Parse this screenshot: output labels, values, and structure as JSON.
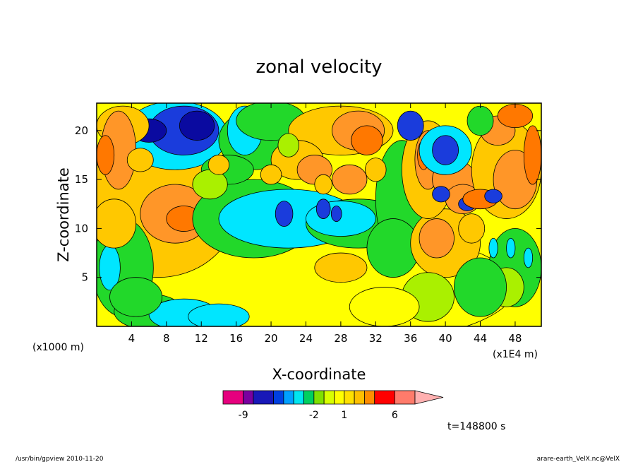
{
  "chart_data": {
    "type": "heatmap",
    "title": "zonal velocity",
    "xlabel": "X-coordinate",
    "ylabel": "Z-coordinate",
    "x_unit_note": "(x1E4 m)",
    "y_unit_note": "(x1000 m)",
    "xlim": [
      0,
      51
    ],
    "ylim": [
      0,
      22.8
    ],
    "x_ticks": [
      4,
      8,
      12,
      16,
      20,
      24,
      28,
      32,
      36,
      40,
      44,
      48
    ],
    "y_ticks": [
      5,
      10,
      15,
      20
    ],
    "colorbar": {
      "tick_labels": [
        "-9",
        "-2",
        "1",
        "6"
      ],
      "tick_values": [
        -9,
        -2,
        1,
        6
      ],
      "colors": [
        "#e6007e",
        "#7a00a0",
        "#1818b8",
        "#0040e0",
        "#00a0ff",
        "#00e6f0",
        "#00d060",
        "#80e000",
        "#d8ff00",
        "#ffff00",
        "#ffe000",
        "#ffc000",
        "#ff8c00",
        "#ff0000",
        "#ff7b6b",
        "#ffb0b0"
      ],
      "boundaries": [
        -11,
        -9,
        -8,
        -6,
        -5,
        -4,
        -3,
        -2,
        -1,
        0,
        1,
        2,
        3,
        4,
        6,
        8,
        15
      ]
    },
    "annotation": "t=148800 s",
    "grid": false,
    "colormap_band_colors": {
      "cyan": "#00e6ff",
      "lightblue": "#00c8f0",
      "blue": "#1a3cdc",
      "darkblue": "#0a0aa0",
      "green": "#22d82a",
      "lime": "#aaf000",
      "yellow": "#ffff00",
      "gold": "#ffc800",
      "orange": "#ff9628",
      "darkorange": "#ff7800"
    }
  },
  "footer": {
    "left": "/usr/bin/gpview  2010-11-20",
    "right": "arare-earth_VelX.nc@VelX"
  }
}
